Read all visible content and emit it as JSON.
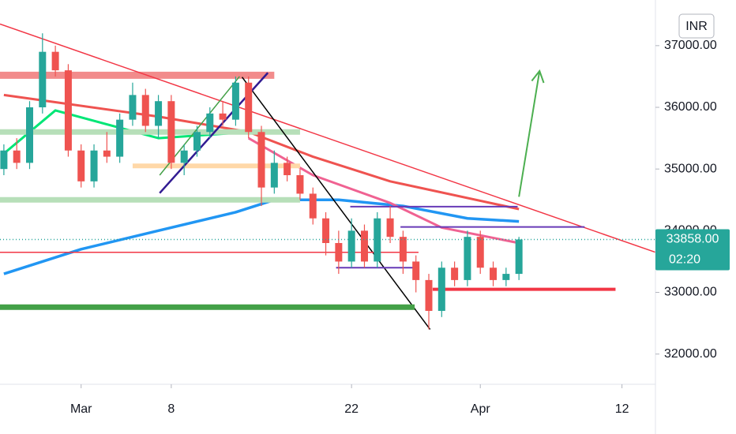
{
  "chart_data": {
    "type": "candlestick",
    "currency": "INR",
    "xlim": [
      -6.3,
      44.6
    ],
    "ylim": [
      31510,
      37740
    ],
    "xticks": [
      {
        "value": 0,
        "label": "Mar"
      },
      {
        "value": 7,
        "label": "8"
      },
      {
        "value": 21,
        "label": "22"
      },
      {
        "value": 31,
        "label": "Apr"
      },
      {
        "value": 42,
        "label": "12"
      }
    ],
    "yticks": [
      {
        "value": 32000,
        "label": "32000.00"
      },
      {
        "value": 33000,
        "label": "33000.00"
      },
      {
        "value": 34000,
        "label": "34000.00"
      },
      {
        "value": 35000,
        "label": "35000.00"
      },
      {
        "value": 36000,
        "label": "36000.00"
      },
      {
        "value": 37000,
        "label": "37000.00"
      }
    ],
    "up_color": "#26a69a",
    "down_color": "#ef5350",
    "x": [
      -6,
      -5,
      -4,
      -3,
      -2,
      -1,
      0,
      1,
      2,
      3,
      4,
      5,
      6,
      7,
      8,
      9,
      10,
      11,
      12,
      13,
      14,
      15,
      16,
      17,
      18,
      19,
      20,
      21,
      22,
      23,
      24,
      25,
      26,
      27,
      28,
      29,
      30,
      31,
      32,
      33,
      34
    ],
    "open": [
      35000,
      35300,
      35100,
      36000,
      36900,
      36600,
      35300,
      34800,
      35300,
      35200,
      35800,
      36200,
      35700,
      36100,
      35100,
      35300,
      35600,
      35900,
      35800,
      36400,
      35600,
      34700,
      35100,
      34900,
      34600,
      34200,
      33800,
      33500,
      34000,
      33500,
      34200,
      33900,
      33500,
      33200,
      32700,
      33400,
      33200,
      33900,
      33400,
      33200,
      33300
    ],
    "high": [
      35400,
      35500,
      36100,
      37200,
      37000,
      36700,
      35400,
      35400,
      35600,
      35900,
      36400,
      36300,
      36200,
      36200,
      35400,
      35700,
      36000,
      36100,
      36500,
      36500,
      35700,
      35300,
      35200,
      35000,
      34700,
      34300,
      34000,
      34200,
      34100,
      34300,
      34400,
      34000,
      33600,
      33300,
      33500,
      33500,
      34000,
      34000,
      33500,
      33400,
      33900
    ],
    "low": [
      34900,
      35000,
      35000,
      35900,
      36500,
      35200,
      34700,
      34700,
      35100,
      35100,
      35700,
      35600,
      35500,
      35000,
      34900,
      35200,
      35500,
      35700,
      35700,
      35500,
      34400,
      34600,
      34800,
      34500,
      34100,
      33600,
      33300,
      33400,
      33400,
      33400,
      33800,
      33300,
      33000,
      32400,
      32600,
      33100,
      33100,
      33300,
      33100,
      33100,
      33200
    ],
    "close": [
      35300,
      35100,
      36000,
      36900,
      36600,
      35300,
      34800,
      35300,
      35200,
      35800,
      36200,
      35700,
      36100,
      35100,
      35300,
      35600,
      35900,
      35800,
      36400,
      35600,
      34700,
      35100,
      34900,
      34600,
      34200,
      33800,
      33500,
      34000,
      33500,
      34200,
      33900,
      33500,
      33200,
      32700,
      33400,
      33200,
      33900,
      33400,
      33200,
      33300,
      33858
    ],
    "last_price": {
      "value": 33858,
      "label": "33858.00"
    },
    "countdown": "02:20",
    "series": [
      {
        "color": "#2196f3",
        "width": 3.5,
        "x": [
          -6,
          0,
          6,
          12,
          15,
          20,
          25,
          30,
          34
        ],
        "values": [
          33300,
          33700,
          34000,
          34300,
          34500,
          34500,
          34400,
          34200,
          34150
        ]
      },
      {
        "color": "#ef5350",
        "width": 3,
        "x": [
          -6,
          6,
          13,
          18,
          24,
          34
        ],
        "values": [
          36200,
          35850,
          35600,
          35200,
          34800,
          34350
        ]
      },
      {
        "color": "#f06292",
        "width": 3,
        "x": [
          13,
          18,
          24,
          28,
          34
        ],
        "values": [
          35500,
          34900,
          34450,
          34050,
          33800
        ]
      },
      {
        "color": "#00e676",
        "width": 3,
        "x": [
          -6,
          -2,
          6,
          13
        ],
        "values": [
          35250,
          35950,
          35500,
          35600
        ]
      }
    ],
    "drawings": [
      {
        "color": "#f28b8b",
        "width": 9,
        "x": [
          -6.3,
          15
        ],
        "y": [
          36520,
          36520
        ]
      },
      {
        "color": "#b7dfb9",
        "width": 7,
        "x": [
          -6.3,
          17
        ],
        "y": [
          35600,
          35600
        ]
      },
      {
        "color": "#ffd8a8",
        "width": 6,
        "x": [
          4,
          17
        ],
        "y": [
          35050,
          35050
        ]
      },
      {
        "color": "#b7dfb9",
        "width": 7,
        "x": [
          -6.3,
          17
        ],
        "y": [
          34500,
          34500
        ]
      },
      {
        "color": "#f23645",
        "width": 1.5,
        "x": [
          -6.3,
          44.6
        ],
        "y": [
          37350,
          33650
        ]
      },
      {
        "color": "#000000",
        "width": 1.5,
        "x": [
          12.5,
          27.1
        ],
        "y": [
          36490,
          32400
        ]
      },
      {
        "color": "#311b92",
        "width": 2.5,
        "x": [
          6.1,
          14.5
        ],
        "y": [
          34610,
          36560
        ]
      },
      {
        "color": "#43a047",
        "width": 1.5,
        "x": [
          6.1,
          12.3
        ],
        "y": [
          34900,
          36500
        ]
      },
      {
        "color": "#673ab7",
        "width": 2,
        "x": [
          20.9,
          33.9
        ],
        "y": [
          34390,
          34390
        ]
      },
      {
        "color": "#673ab7",
        "width": 2,
        "x": [
          24.8,
          39.1
        ],
        "y": [
          34060,
          34060
        ]
      },
      {
        "color": "#673ab7",
        "width": 2,
        "x": [
          19.8,
          25.9
        ],
        "y": [
          33400,
          33400
        ]
      },
      {
        "color": "#f23645",
        "width": 1.5,
        "x": [
          -6.3,
          26.2
        ],
        "y": [
          33650,
          33650
        ]
      },
      {
        "color": "#f23645",
        "width": 4,
        "x": [
          27.3,
          41.5
        ],
        "y": [
          33050,
          33050
        ]
      },
      {
        "color": "#43a047",
        "width": 7,
        "x": [
          -6.3,
          25.9
        ],
        "y": [
          32760,
          32760
        ]
      },
      {
        "color": "#4caf50",
        "width": 2,
        "x": [
          34,
          35.6
        ],
        "y": [
          34550,
          36590
        ],
        "arrow": true
      }
    ]
  }
}
